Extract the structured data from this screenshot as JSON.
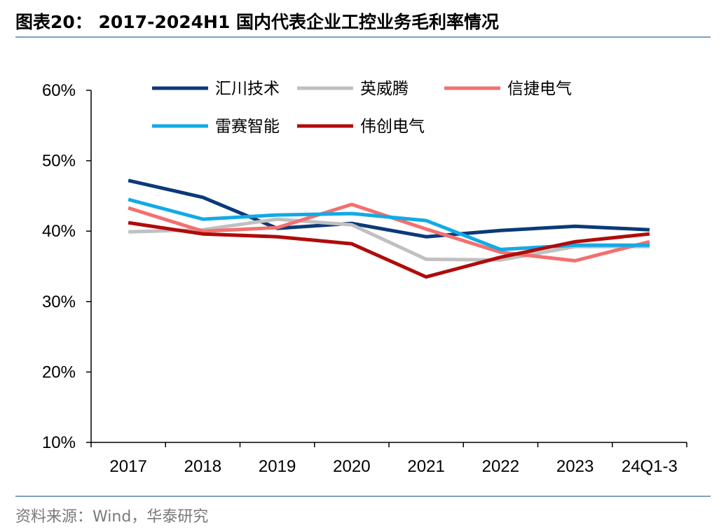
{
  "header": {
    "title": "图表20：  2017-2024H1 国内代表企业工控业务毛利率情况"
  },
  "footer": {
    "source": "资料来源：Wind，华泰研究"
  },
  "chart_data": {
    "type": "line",
    "categories": [
      "2017",
      "2018",
      "2019",
      "2020",
      "2021",
      "2022",
      "2023",
      "24Q1-3"
    ],
    "ylim": [
      0.1,
      0.6
    ],
    "yticks": [
      {
        "value": 0.6,
        "label": "60%"
      },
      {
        "value": 0.5,
        "label": "50%"
      },
      {
        "value": 0.4,
        "label": "40%"
      },
      {
        "value": 0.3,
        "label": "30%"
      },
      {
        "value": 0.2,
        "label": "20%"
      },
      {
        "value": 0.1,
        "label": "10%"
      }
    ],
    "grid": false,
    "legend_position": "top",
    "series": [
      {
        "name": "汇川技术",
        "color": "#0b3a78",
        "values": [
          0.472,
          0.448,
          0.404,
          0.411,
          0.392,
          0.401,
          0.407,
          0.402
        ]
      },
      {
        "name": "英威腾",
        "color": "#c0c0c0",
        "values": [
          0.399,
          0.402,
          0.417,
          0.409,
          0.36,
          0.359,
          0.378,
          0.378
        ]
      },
      {
        "name": "信捷电气",
        "color": "#f2706f",
        "values": [
          0.433,
          0.4,
          0.405,
          0.438,
          0.403,
          0.37,
          0.358,
          0.385
        ]
      },
      {
        "name": "雷赛智能",
        "color": "#12aae6",
        "values": [
          0.445,
          0.417,
          0.423,
          0.425,
          0.415,
          0.374,
          0.38,
          0.38
        ]
      },
      {
        "name": "伟创电气",
        "color": "#b00b0b",
        "values": [
          0.412,
          0.396,
          0.392,
          0.382,
          0.335,
          0.363,
          0.385,
          0.396
        ]
      }
    ]
  }
}
